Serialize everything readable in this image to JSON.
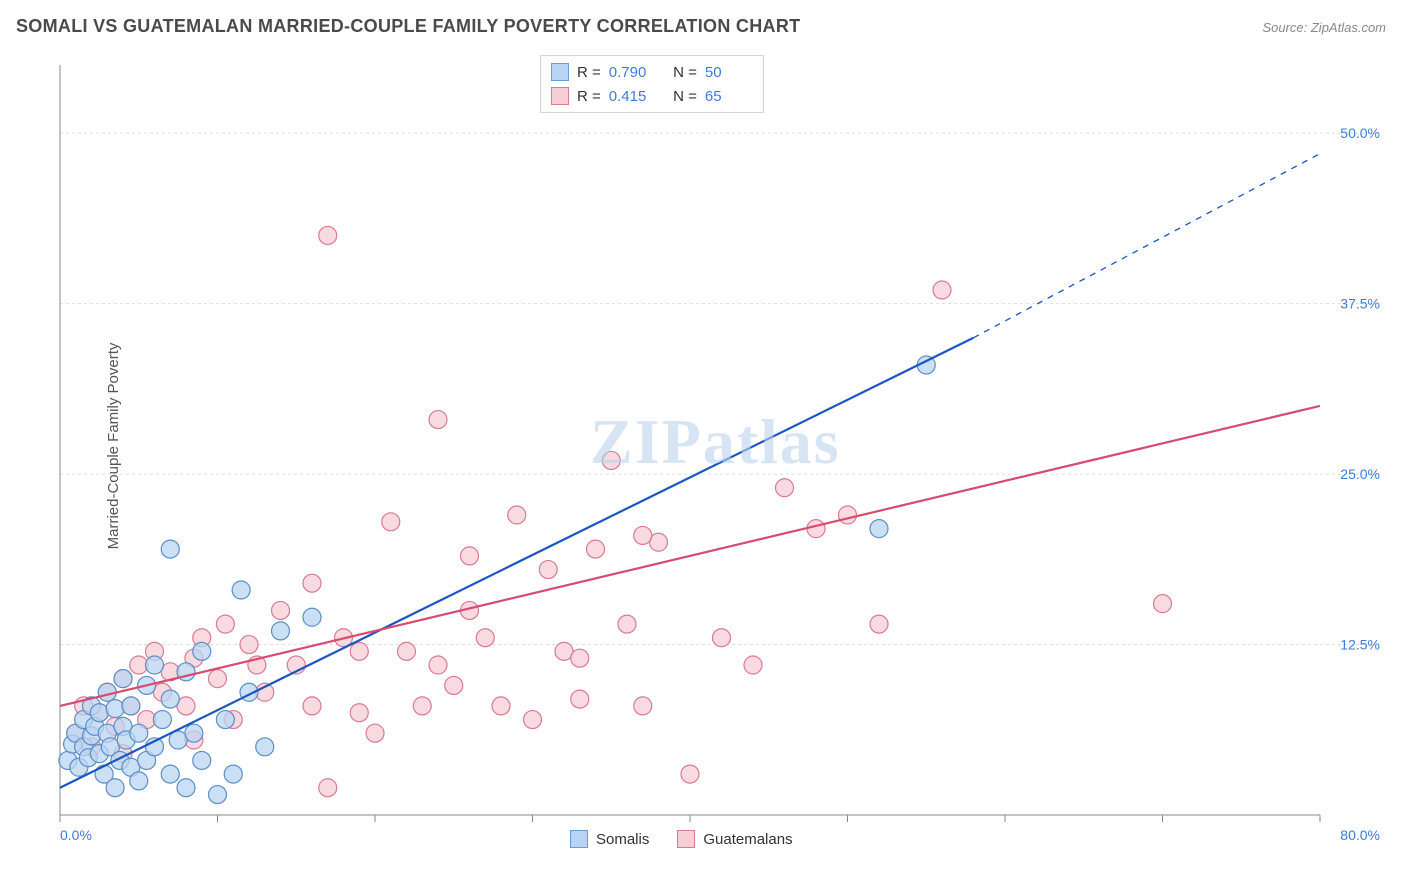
{
  "title": "SOMALI VS GUATEMALAN MARRIED-COUPLE FAMILY POVERTY CORRELATION CHART",
  "source": "Source: ZipAtlas.com",
  "ylabel": "Married-Couple Family Poverty",
  "watermark": "ZIPatlas",
  "chart": {
    "type": "scatter",
    "background_color": "#ffffff",
    "grid_color": "#dddddd",
    "axis_color": "#888888",
    "tick_label_color": "#3b7ddd",
    "tick_fontsize": 14,
    "xlim": [
      0,
      80
    ],
    "ylim": [
      0,
      55
    ],
    "xticks": [
      0,
      10,
      20,
      30,
      40,
      50,
      60,
      70,
      80
    ],
    "xtick_labels": {
      "0": "0.0%",
      "80": "80.0%"
    },
    "yticks": [
      12.5,
      25.0,
      37.5,
      50.0
    ],
    "ytick_labels": [
      "12.5%",
      "25.0%",
      "37.5%",
      "50.0%"
    ],
    "marker_radius": 9,
    "marker_stroke_width": 1.2,
    "series": [
      {
        "name": "Somalis",
        "fill": "#b9d4f2",
        "stroke": "#5a8fc7",
        "swatch_fill": "#b9d4f2",
        "swatch_border": "#6a9bd1",
        "r": "0.790",
        "n": "50",
        "trend": {
          "x1": 0,
          "y1": 2.0,
          "x2": 58,
          "y2": 35.0,
          "color": "#1a56c4",
          "width": 2.2,
          "dash_extent_x2": 80,
          "dash_extent_y2": 48.5
        },
        "points": [
          [
            0.5,
            4.0
          ],
          [
            0.8,
            5.2
          ],
          [
            1.0,
            6.0
          ],
          [
            1.2,
            3.5
          ],
          [
            1.5,
            5.0
          ],
          [
            1.5,
            7.0
          ],
          [
            1.8,
            4.2
          ],
          [
            2.0,
            5.8
          ],
          [
            2.0,
            8.0
          ],
          [
            2.2,
            6.5
          ],
          [
            2.5,
            4.5
          ],
          [
            2.5,
            7.5
          ],
          [
            2.8,
            3.0
          ],
          [
            3.0,
            6.0
          ],
          [
            3.0,
            9.0
          ],
          [
            3.2,
            5.0
          ],
          [
            3.5,
            2.0
          ],
          [
            3.5,
            7.8
          ],
          [
            3.8,
            4.0
          ],
          [
            4.0,
            6.5
          ],
          [
            4.0,
            10.0
          ],
          [
            4.2,
            5.5
          ],
          [
            4.5,
            3.5
          ],
          [
            4.5,
            8.0
          ],
          [
            5.0,
            2.5
          ],
          [
            5.0,
            6.0
          ],
          [
            5.5,
            4.0
          ],
          [
            5.5,
            9.5
          ],
          [
            6.0,
            5.0
          ],
          [
            6.0,
            11.0
          ],
          [
            6.5,
            7.0
          ],
          [
            7.0,
            3.0
          ],
          [
            7.0,
            8.5
          ],
          [
            7.5,
            5.5
          ],
          [
            8.0,
            2.0
          ],
          [
            8.0,
            10.5
          ],
          [
            8.5,
            6.0
          ],
          [
            9.0,
            4.0
          ],
          [
            9.0,
            12.0
          ],
          [
            10.0,
            1.5
          ],
          [
            10.5,
            7.0
          ],
          [
            11.0,
            3.0
          ],
          [
            11.5,
            16.5
          ],
          [
            12.0,
            9.0
          ],
          [
            13.0,
            5.0
          ],
          [
            14.0,
            13.5
          ],
          [
            16.0,
            14.5
          ],
          [
            7.0,
            19.5
          ],
          [
            55.0,
            33.0
          ],
          [
            52.0,
            21.0
          ]
        ]
      },
      {
        "name": "Guatemalans",
        "fill": "#f7cdd6",
        "stroke": "#d97a94",
        "swatch_fill": "#f7cdd6",
        "swatch_border": "#d97a94",
        "r": "0.415",
        "n": "65",
        "trend": {
          "x1": 0,
          "y1": 8.0,
          "x2": 80,
          "y2": 30.0,
          "color": "#d94a6f",
          "width": 2.2
        },
        "points": [
          [
            1.0,
            6.0
          ],
          [
            1.5,
            8.0
          ],
          [
            2.0,
            5.0
          ],
          [
            2.5,
            7.5
          ],
          [
            3.0,
            9.0
          ],
          [
            3.5,
            6.5
          ],
          [
            4.0,
            10.0
          ],
          [
            4.5,
            8.0
          ],
          [
            5.0,
            11.0
          ],
          [
            5.5,
            7.0
          ],
          [
            6.0,
            12.0
          ],
          [
            6.5,
            9.0
          ],
          [
            7.0,
            10.5
          ],
          [
            8.0,
            8.0
          ],
          [
            8.5,
            11.5
          ],
          [
            9.0,
            13.0
          ],
          [
            10.0,
            10.0
          ],
          [
            10.5,
            14.0
          ],
          [
            11.0,
            7.0
          ],
          [
            12.0,
            12.5
          ],
          [
            13.0,
            9.0
          ],
          [
            14.0,
            15.0
          ],
          [
            15.0,
            11.0
          ],
          [
            16.0,
            8.0
          ],
          [
            17.0,
            2.0
          ],
          [
            18.0,
            13.0
          ],
          [
            19.0,
            7.5
          ],
          [
            20.0,
            6.0
          ],
          [
            21.0,
            21.5
          ],
          [
            22.0,
            12.0
          ],
          [
            23.0,
            8.0
          ],
          [
            24.0,
            11.0
          ],
          [
            25.0,
            9.5
          ],
          [
            26.0,
            19.0
          ],
          [
            27.0,
            13.0
          ],
          [
            28.0,
            8.0
          ],
          [
            29.0,
            22.0
          ],
          [
            30.0,
            7.0
          ],
          [
            31.0,
            18.0
          ],
          [
            32.0,
            12.0
          ],
          [
            33.0,
            8.5
          ],
          [
            34.0,
            19.5
          ],
          [
            35.0,
            26.0
          ],
          [
            36.0,
            14.0
          ],
          [
            37.0,
            8.0
          ],
          [
            38.0,
            20.0
          ],
          [
            40.0,
            3.0
          ],
          [
            42.0,
            13.0
          ],
          [
            44.0,
            11.0
          ],
          [
            24.0,
            29.0
          ],
          [
            46.0,
            24.0
          ],
          [
            48.0,
            21.0
          ],
          [
            50.0,
            22.0
          ],
          [
            52.0,
            14.0
          ],
          [
            17.0,
            42.5
          ],
          [
            56.0,
            38.5
          ],
          [
            70.0,
            15.5
          ],
          [
            16.0,
            17.0
          ],
          [
            19.0,
            12.0
          ],
          [
            26.0,
            15.0
          ],
          [
            33.0,
            11.5
          ],
          [
            37.0,
            20.5
          ],
          [
            12.5,
            11.0
          ],
          [
            8.5,
            5.5
          ],
          [
            4.0,
            4.5
          ]
        ]
      }
    ],
    "legend_bottom": [
      {
        "label": "Somalis",
        "swatch_fill": "#b9d4f2",
        "swatch_border": "#6a9bd1"
      },
      {
        "label": "Guatemalans",
        "swatch_fill": "#f7cdd6",
        "swatch_border": "#d97a94"
      }
    ]
  }
}
